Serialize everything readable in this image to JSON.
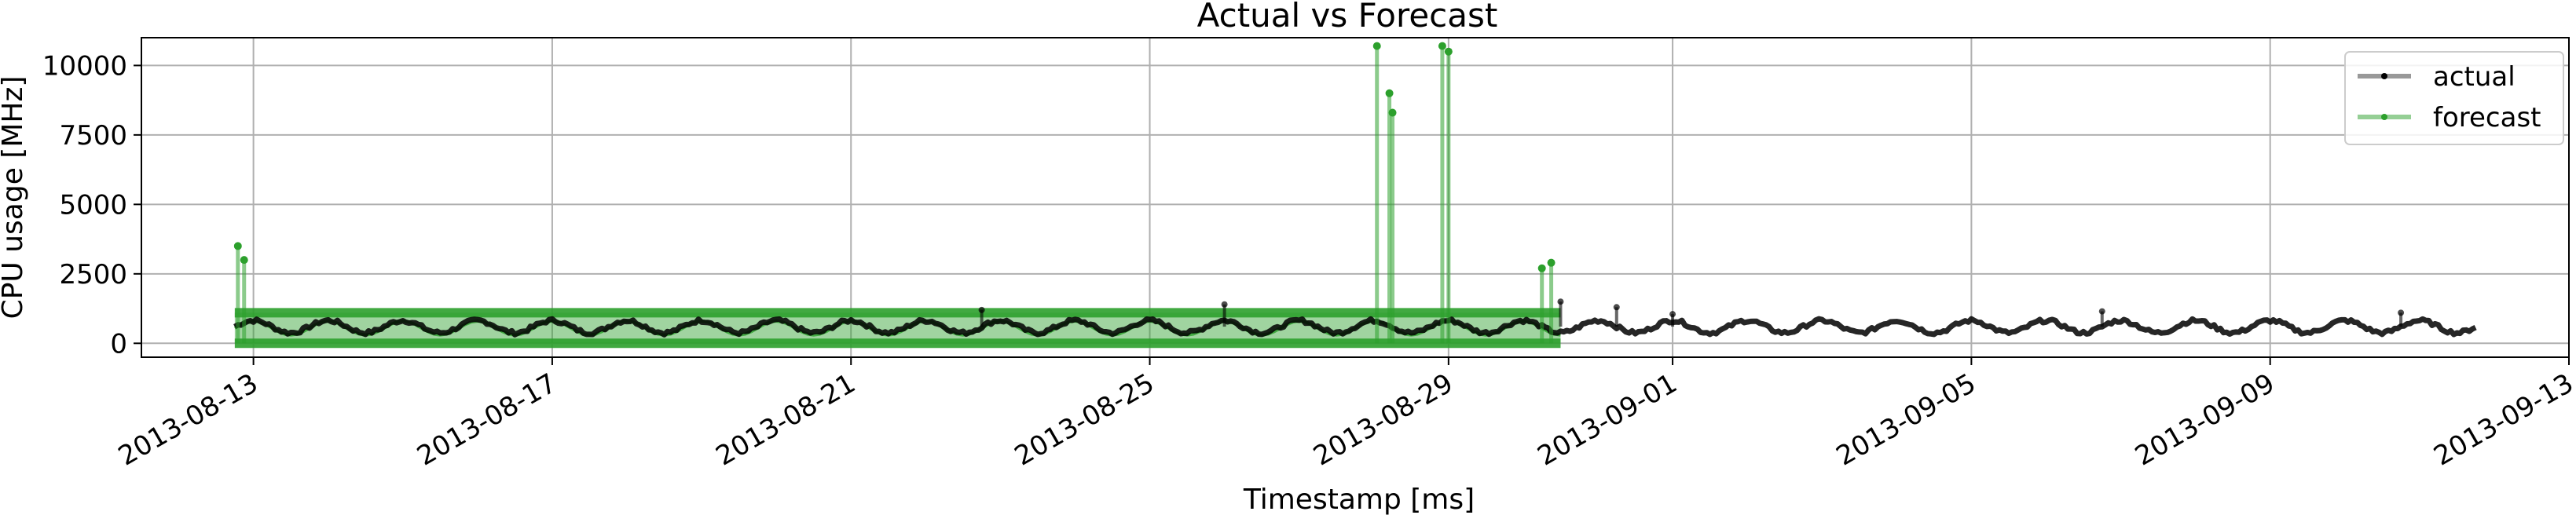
{
  "chart_data": {
    "type": "line",
    "title": "Actual vs Forecast",
    "xlabel": "Timestamp [ms]",
    "ylabel": "CPU usage [MHz]",
    "x_type": "date",
    "xlim": [
      "2013-08-11T12:00",
      "2013-09-13T00:00"
    ],
    "ylim": [
      -500,
      11000
    ],
    "x_ticks": [
      "2013-08-13",
      "2013-08-17",
      "2013-08-21",
      "2013-08-25",
      "2013-08-29",
      "2013-09-01",
      "2013-09-05",
      "2013-09-09",
      "2013-09-13"
    ],
    "y_ticks": [
      0,
      2500,
      5000,
      7500,
      10000
    ],
    "y_tick_labels": [
      "0",
      "2500",
      "5000",
      "7500",
      "10000"
    ],
    "grid": true,
    "legend_position": "top-right",
    "series": [
      {
        "name": "actual",
        "color": "#000000",
        "x_start": "2013-08-12T18:00",
        "x_end": "2013-09-11T18:00",
        "baseline": 600,
        "amplitude": 220,
        "period_days": 1,
        "spikes": [
          {
            "x": "2013-08-22T18:00",
            "y": 1200
          },
          {
            "x": "2013-08-26T00:00",
            "y": 1400
          },
          {
            "x": "2013-08-30T12:00",
            "y": 1500
          },
          {
            "x": "2013-08-31T06:00",
            "y": 1300
          },
          {
            "x": "2013-09-01T00:00",
            "y": 1050
          },
          {
            "x": "2013-09-06T18:00",
            "y": 1150
          },
          {
            "x": "2013-09-10T18:00",
            "y": 1100
          }
        ]
      },
      {
        "name": "forecast",
        "color": "#2ca02c",
        "x_start": "2013-08-12T18:00",
        "x_end": "2013-08-30T12:00",
        "band_low": 0,
        "band_high": 1100,
        "center": 550,
        "spikes": [
          {
            "x": "2013-08-12T19:00",
            "y": 3500
          },
          {
            "x": "2013-08-12T21:00",
            "y": 3000
          },
          {
            "x": "2013-08-28T01:00",
            "y": 10700
          },
          {
            "x": "2013-08-28T05:00",
            "y": 9000
          },
          {
            "x": "2013-08-28T06:00",
            "y": 8300
          },
          {
            "x": "2013-08-28T22:00",
            "y": 10700
          },
          {
            "x": "2013-08-29T00:00",
            "y": 10500
          },
          {
            "x": "2013-08-30T06:00",
            "y": 2700
          },
          {
            "x": "2013-08-30T09:00",
            "y": 2900
          }
        ]
      }
    ]
  }
}
